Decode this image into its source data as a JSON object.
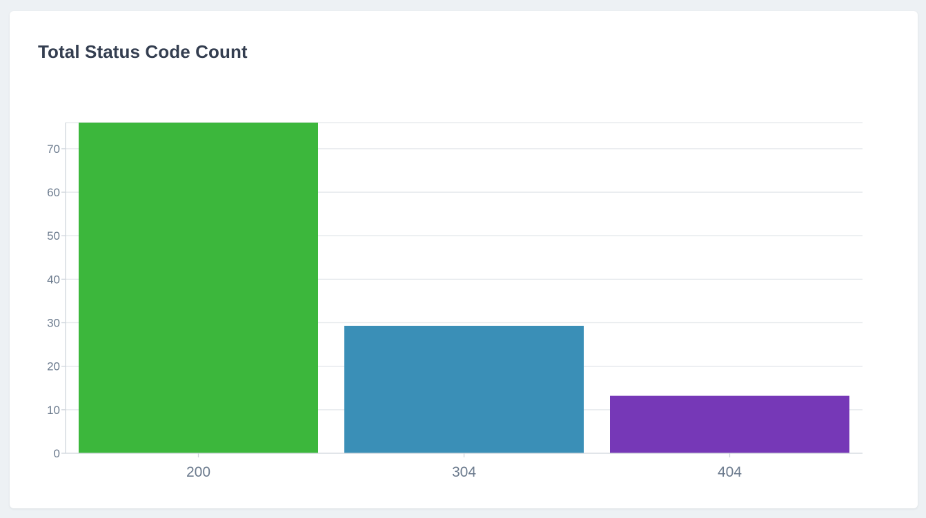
{
  "card": {
    "title": "Total Status Code Count"
  },
  "chart_data": {
    "type": "bar",
    "title": "Total Status Code Count",
    "categories": [
      "200",
      "304",
      "404"
    ],
    "values": [
      76,
      29.3,
      13.2
    ],
    "colors": [
      "#3cb73c",
      "#3a8fb7",
      "#7638b7"
    ],
    "ylim": [
      0,
      76
    ],
    "yticks": [
      0,
      10,
      20,
      30,
      40,
      50,
      60,
      70
    ],
    "xlabel": "",
    "ylabel": "",
    "grid": true,
    "legend": "none"
  }
}
